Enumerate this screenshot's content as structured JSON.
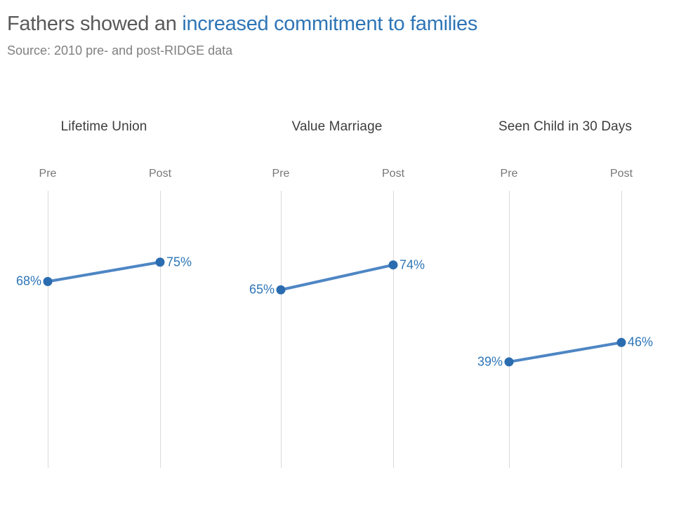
{
  "header": {
    "title_plain": "Fathers showed an ",
    "title_accent": "increased commitment to families",
    "source": "Source: 2010 pre- and post-RIDGE data"
  },
  "colors": {
    "accent_blue": "#2E75B6",
    "line_blue": "#4E86C4",
    "dot_blue": "#2B6CB0",
    "value_label_blue": "#2E75B6",
    "title_gray": "#595959",
    "subtle_gray": "#808080",
    "gridline_gray": "#D9D9D9"
  },
  "chart_data": {
    "type": "line",
    "subtype": "slope-chart",
    "description": "Three paired pre/post slope charts showing percent of fathers, 2010 pre- and post-RIDGE data",
    "legend_position": "none",
    "grid": "vertical-only",
    "ylim": [
      0,
      100
    ],
    "x_labels": [
      "Pre",
      "Post"
    ],
    "panels": [
      {
        "title": "Lifetime Union",
        "x_labels": [
          "Pre",
          "Post"
        ],
        "values": [
          68,
          75
        ],
        "labels": [
          "68%",
          "75%"
        ]
      },
      {
        "title": "Value Marriage",
        "x_labels": [
          "Pre",
          "Post"
        ],
        "values": [
          65,
          74
        ],
        "labels": [
          "65%",
          "74%"
        ]
      },
      {
        "title": "Seen Child in 30 Days",
        "x_labels": [
          "Pre",
          "Post"
        ],
        "values": [
          39,
          46
        ],
        "labels": [
          "39%",
          "46%"
        ]
      }
    ]
  }
}
